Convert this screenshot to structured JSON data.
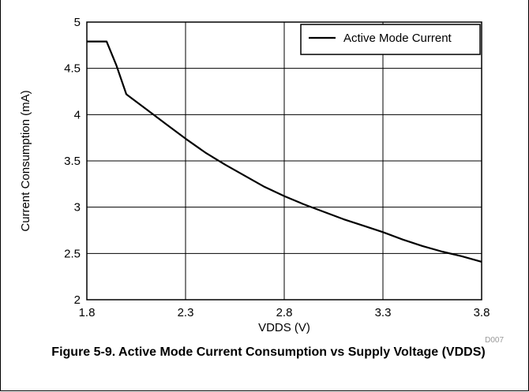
{
  "figure": {
    "caption": "Figure 5-9. Active Mode Current Consumption vs Supply Voltage (VDDS)",
    "code": "D007"
  },
  "chart_data": {
    "type": "line",
    "title": "",
    "xlabel": "VDDS (V)",
    "ylabel": "Current Consumption (mA)",
    "xlim": [
      1.8,
      3.8
    ],
    "ylim": [
      2,
      5
    ],
    "xticks": [
      1.8,
      2.3,
      2.8,
      3.3,
      3.8
    ],
    "xtick_labels": [
      "1.8",
      "2.3",
      "2.8",
      "3.3",
      "3.8"
    ],
    "yticks": [
      2,
      2.5,
      3,
      3.5,
      4,
      4.5,
      5
    ],
    "ytick_labels": [
      "2",
      "2.5",
      "3",
      "3.5",
      "4",
      "4.5",
      "5"
    ],
    "grid": true,
    "legend_position": "top-right",
    "series": [
      {
        "name": "Active Mode Current",
        "color": "#000000",
        "x": [
          1.8,
          1.9,
          1.95,
          2.0,
          2.1,
          2.2,
          2.3,
          2.4,
          2.5,
          2.6,
          2.7,
          2.8,
          2.9,
          3.0,
          3.1,
          3.2,
          3.3,
          3.4,
          3.5,
          3.6,
          3.7,
          3.8
        ],
        "y": [
          4.79,
          4.79,
          4.53,
          4.22,
          4.06,
          3.9,
          3.74,
          3.59,
          3.46,
          3.34,
          3.22,
          3.12,
          3.03,
          2.95,
          2.87,
          2.8,
          2.73,
          2.65,
          2.58,
          2.52,
          2.47,
          2.41
        ]
      }
    ]
  }
}
